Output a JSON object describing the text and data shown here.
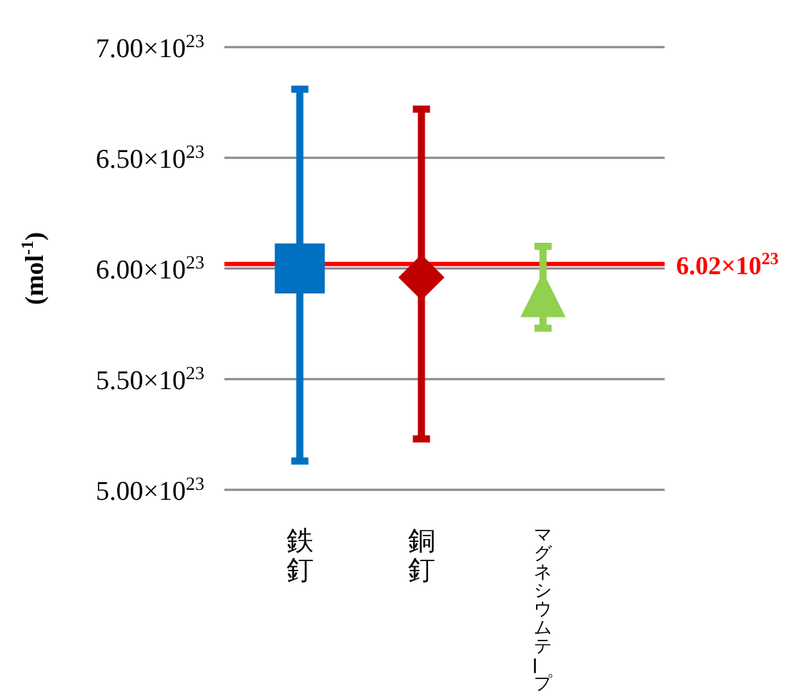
{
  "chart_data": {
    "type": "scatter",
    "ylabel": "(mol$^{-1}$)",
    "categories": [
      "鉄釘",
      "銅釘",
      "マグネシウムテープ"
    ],
    "series": [
      {
        "color": "#0070c0",
        "marker": "square",
        "values": [
          6e+23,
          null,
          null
        ],
        "errors": [
          [
            5.13e+23,
            6.81e+23
          ],
          null,
          null
        ]
      },
      {
        "color": "#c00000",
        "marker": "diamond",
        "values": [
          null,
          5.96e+23,
          null
        ],
        "errors": [
          null,
          [
            5.23e+23,
            6.72e+23
          ],
          null
        ]
      },
      {
        "color": "#92d050",
        "marker": "triangle",
        "values": [
          null,
          null,
          5.88e+23
        ],
        "errors": [
          null,
          null,
          [
            5.73e+23,
            6.1e+23
          ]
        ]
      }
    ],
    "ylim": [
      5e+23,
      7e+23
    ],
    "yticks": [
      {
        "value": 5e+23,
        "label": "5.00×10$^{23}$"
      },
      {
        "value": 5.5e+23,
        "label": "5.50×10$^{23}$"
      },
      {
        "value": 6e+23,
        "label": "6.00×10$^{23}$"
      },
      {
        "value": 6.5e+23,
        "label": "6.50×10$^{23}$"
      },
      {
        "value": 7e+23,
        "label": "7.00×10$^{23}$"
      }
    ],
    "grid": "y",
    "ref_lines": [
      {
        "axis": "y",
        "value": 6.02e+23,
        "label": "6.02×10$^{23}$",
        "color": "#ff0000"
      }
    ]
  }
}
